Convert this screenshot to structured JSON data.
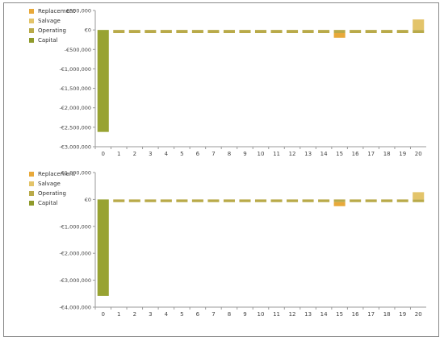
{
  "legend": [
    {
      "name": "Replacement",
      "color": "#e8a93a"
    },
    {
      "name": "Salvage",
      "color": "#e3c46a"
    },
    {
      "name": "Operating",
      "color": "#b9aa49"
    },
    {
      "name": "Capital",
      "color": "#8f9a2b"
    }
  ],
  "chart_data": [
    {
      "type": "bar",
      "stacked": true,
      "categories": [
        "0",
        "1",
        "2",
        "3",
        "4",
        "5",
        "6",
        "7",
        "8",
        "9",
        "10",
        "11",
        "12",
        "13",
        "14",
        "15",
        "16",
        "17",
        "18",
        "19",
        "20"
      ],
      "series": [
        {
          "name": "Capital",
          "color": "#98a332",
          "values": [
            -2620000,
            0,
            0,
            0,
            0,
            0,
            0,
            0,
            0,
            0,
            0,
            0,
            0,
            0,
            0,
            0,
            0,
            0,
            0,
            0,
            0
          ]
        },
        {
          "name": "Operating",
          "color": "#b9aa49",
          "values": [
            0,
            -80000,
            -80000,
            -80000,
            -80000,
            -80000,
            -80000,
            -80000,
            -80000,
            -80000,
            -80000,
            -80000,
            -80000,
            -80000,
            -80000,
            -80000,
            -80000,
            -80000,
            -80000,
            -80000,
            -80000
          ]
        },
        {
          "name": "Replacement",
          "color": "#e8a93a",
          "values": [
            0,
            0,
            0,
            0,
            0,
            0,
            0,
            0,
            0,
            0,
            0,
            0,
            0,
            0,
            0,
            -120000,
            0,
            0,
            0,
            0,
            0
          ]
        },
        {
          "name": "Salvage",
          "color": "#e3c46a",
          "values": [
            0,
            0,
            0,
            0,
            0,
            0,
            0,
            0,
            0,
            0,
            0,
            0,
            0,
            0,
            0,
            0,
            0,
            0,
            0,
            0,
            270000
          ]
        }
      ],
      "yticks": [
        500000,
        0,
        -500000,
        -1000000,
        -1500000,
        -2000000,
        -2500000,
        -3000000
      ],
      "ytick_labels": [
        "€500,000",
        "€0",
        "-€500,000",
        "-€1,000,000",
        "-€1,500,000",
        "-€2,000,000",
        "-€2,500,000",
        "-€3,000,000"
      ],
      "ylim": [
        -3000000,
        500000
      ],
      "legend_position": "top-left"
    },
    {
      "type": "bar",
      "stacked": true,
      "categories": [
        "0",
        "1",
        "2",
        "3",
        "4",
        "5",
        "6",
        "7",
        "8",
        "9",
        "10",
        "11",
        "12",
        "13",
        "14",
        "15",
        "16",
        "17",
        "18",
        "19",
        "20"
      ],
      "series": [
        {
          "name": "Capital",
          "color": "#98a332",
          "values": [
            -3580000,
            0,
            0,
            0,
            0,
            0,
            0,
            0,
            0,
            0,
            0,
            0,
            0,
            0,
            0,
            0,
            0,
            0,
            0,
            0,
            0
          ]
        },
        {
          "name": "Operating",
          "color": "#b9aa49",
          "values": [
            0,
            -100000,
            -100000,
            -100000,
            -100000,
            -100000,
            -100000,
            -100000,
            -100000,
            -100000,
            -100000,
            -100000,
            -100000,
            -100000,
            -100000,
            -100000,
            -100000,
            -100000,
            -100000,
            -100000,
            -100000
          ]
        },
        {
          "name": "Replacement",
          "color": "#e8a93a",
          "values": [
            0,
            0,
            0,
            0,
            0,
            0,
            0,
            0,
            0,
            0,
            0,
            0,
            0,
            0,
            0,
            -150000,
            0,
            0,
            0,
            0,
            0
          ]
        },
        {
          "name": "Salvage",
          "color": "#e3c46a",
          "values": [
            0,
            0,
            0,
            0,
            0,
            0,
            0,
            0,
            0,
            0,
            0,
            0,
            0,
            0,
            0,
            0,
            0,
            0,
            0,
            0,
            270000
          ]
        }
      ],
      "yticks": [
        1000000,
        0,
        -1000000,
        -2000000,
        -3000000,
        -4000000
      ],
      "ytick_labels": [
        "€1,000,000",
        "€0",
        "-€1,000,000",
        "-€2,000,000",
        "-€3,000,000",
        "-€4,000,000"
      ],
      "ylim": [
        -4000000,
        1000000
      ],
      "legend_position": "top-left"
    }
  ]
}
